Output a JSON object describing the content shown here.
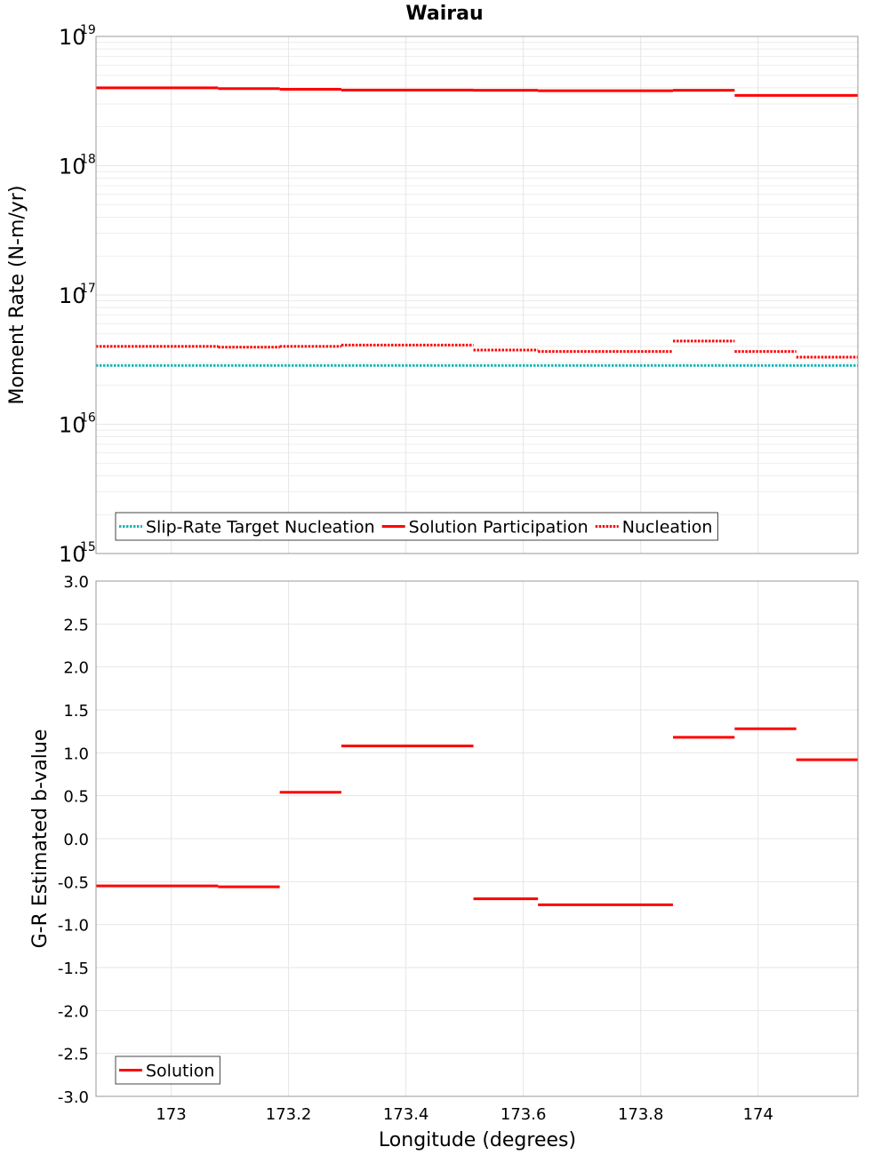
{
  "chart_data": {
    "title": "Wairau",
    "xlabel": "Longitude (degrees)",
    "x_ticks": [
      "173",
      "173.2",
      "173.4",
      "173.6",
      "173.8",
      "174"
    ],
    "x_tick_values": [
      173,
      173.2,
      173.4,
      173.6,
      173.8,
      174
    ],
    "xlim": [
      172.872,
      174.17
    ],
    "colors": {
      "target": "#1fb5b5",
      "solution": "#ff0000",
      "frame": "#9a9a9a",
      "grid": "#e6e6e6"
    },
    "panels": [
      {
        "type": "line",
        "yscale": "log",
        "ylabel": "Moment Rate (N-m/yr)",
        "ylim": [
          1000000000000000.0,
          1e+19
        ],
        "y_tick_base": "10",
        "y_tick_exponents": [
          "19",
          "18",
          "17",
          "16",
          "15"
        ],
        "legend": {
          "placement": "bottom-left",
          "entries": [
            {
              "label": "Slip-Rate Target Nucleation",
              "color": "#1fb5b5",
              "style": "dotted"
            },
            {
              "label": "Solution Participation",
              "color": "#ff0000",
              "style": "solid"
            },
            {
              "label": "Nucleation",
              "color": "#ff0000",
              "style": "dotted"
            }
          ]
        },
        "series": [
          {
            "name": "Slip-Rate Target Nucleation",
            "style": "dotted",
            "color": "#1fb5b5",
            "segments": [
              {
                "x0": 172.872,
                "x1": 174.17,
                "y": 2.85e+16
              }
            ]
          },
          {
            "name": "Solution Participation",
            "style": "solid",
            "color": "#ff0000",
            "segments": [
              {
                "x0": 172.872,
                "x1": 173.08,
                "y": 4e+18
              },
              {
                "x0": 173.08,
                "x1": 173.185,
                "y": 3.95e+18
              },
              {
                "x0": 173.185,
                "x1": 173.29,
                "y": 3.9e+18
              },
              {
                "x0": 173.29,
                "x1": 173.515,
                "y": 3.85e+18
              },
              {
                "x0": 173.515,
                "x1": 173.625,
                "y": 3.83e+18
              },
              {
                "x0": 173.625,
                "x1": 173.855,
                "y": 3.8e+18
              },
              {
                "x0": 173.855,
                "x1": 173.96,
                "y": 3.83e+18
              },
              {
                "x0": 173.96,
                "x1": 174.17,
                "y": 3.5e+18
              }
            ]
          },
          {
            "name": "Nucleation",
            "style": "dotted",
            "color": "#ff0000",
            "segments": [
              {
                "x0": 172.872,
                "x1": 173.08,
                "y": 4e+16
              },
              {
                "x0": 173.08,
                "x1": 173.185,
                "y": 3.95e+16
              },
              {
                "x0": 173.185,
                "x1": 173.29,
                "y": 4e+16
              },
              {
                "x0": 173.29,
                "x1": 173.515,
                "y": 4.1e+16
              },
              {
                "x0": 173.515,
                "x1": 173.625,
                "y": 3.75e+16
              },
              {
                "x0": 173.625,
                "x1": 173.855,
                "y": 3.65e+16
              },
              {
                "x0": 173.855,
                "x1": 173.96,
                "y": 4.4e+16
              },
              {
                "x0": 173.96,
                "x1": 174.065,
                "y": 3.65e+16
              },
              {
                "x0": 174.065,
                "x1": 174.17,
                "y": 3.3e+16
              }
            ]
          }
        ]
      },
      {
        "type": "line",
        "yscale": "linear",
        "ylabel": "G-R Estimated b-value",
        "ylim": [
          -3.0,
          3.0
        ],
        "y_ticks": [
          "3.0",
          "2.5",
          "2.0",
          "1.5",
          "1.0",
          "0.5",
          "0.0",
          "-0.5",
          "-1.0",
          "-1.5",
          "-2.0",
          "-2.5",
          "-3.0"
        ],
        "y_tick_values": [
          3.0,
          2.5,
          2.0,
          1.5,
          1.0,
          0.5,
          0.0,
          -0.5,
          -1.0,
          -1.5,
          -2.0,
          -2.5,
          -3.0
        ],
        "legend": {
          "placement": "bottom-left",
          "entries": [
            {
              "label": "Solution",
              "color": "#ff0000",
              "style": "solid"
            }
          ]
        },
        "series": [
          {
            "name": "Solution",
            "style": "solid",
            "color": "#ff0000",
            "segments": [
              {
                "x0": 172.872,
                "x1": 173.08,
                "y": -0.55
              },
              {
                "x0": 173.08,
                "x1": 173.185,
                "y": -0.56
              },
              {
                "x0": 173.185,
                "x1": 173.29,
                "y": 0.54
              },
              {
                "x0": 173.29,
                "x1": 173.515,
                "y": 1.08
              },
              {
                "x0": 173.515,
                "x1": 173.625,
                "y": -0.7
              },
              {
                "x0": 173.625,
                "x1": 173.855,
                "y": -0.77
              },
              {
                "x0": 173.855,
                "x1": 173.96,
                "y": 1.18
              },
              {
                "x0": 173.96,
                "x1": 174.065,
                "y": 1.28
              },
              {
                "x0": 174.065,
                "x1": 174.17,
                "y": 0.92
              }
            ]
          }
        ]
      }
    ]
  }
}
